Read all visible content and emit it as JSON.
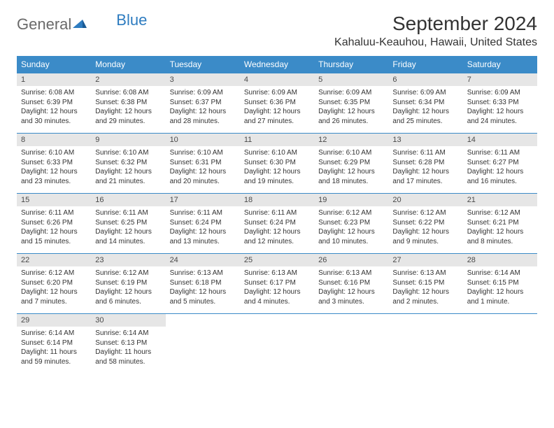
{
  "brand": {
    "part1": "General",
    "part2": "Blue"
  },
  "title": {
    "month": "September 2024",
    "location": "Kahaluu-Keauhou, Hawaii, United States"
  },
  "dayNames": [
    "Sunday",
    "Monday",
    "Tuesday",
    "Wednesday",
    "Thursday",
    "Friday",
    "Saturday"
  ],
  "colors": {
    "headerBg": "#3b8bc8",
    "dayNumBg": "#e6e6e6",
    "border": "#3b8bc8"
  },
  "weeks": [
    [
      {
        "n": "1",
        "sr": "Sunrise: 6:08 AM",
        "ss": "Sunset: 6:39 PM",
        "d1": "Daylight: 12 hours",
        "d2": "and 30 minutes."
      },
      {
        "n": "2",
        "sr": "Sunrise: 6:08 AM",
        "ss": "Sunset: 6:38 PM",
        "d1": "Daylight: 12 hours",
        "d2": "and 29 minutes."
      },
      {
        "n": "3",
        "sr": "Sunrise: 6:09 AM",
        "ss": "Sunset: 6:37 PM",
        "d1": "Daylight: 12 hours",
        "d2": "and 28 minutes."
      },
      {
        "n": "4",
        "sr": "Sunrise: 6:09 AM",
        "ss": "Sunset: 6:36 PM",
        "d1": "Daylight: 12 hours",
        "d2": "and 27 minutes."
      },
      {
        "n": "5",
        "sr": "Sunrise: 6:09 AM",
        "ss": "Sunset: 6:35 PM",
        "d1": "Daylight: 12 hours",
        "d2": "and 26 minutes."
      },
      {
        "n": "6",
        "sr": "Sunrise: 6:09 AM",
        "ss": "Sunset: 6:34 PM",
        "d1": "Daylight: 12 hours",
        "d2": "and 25 minutes."
      },
      {
        "n": "7",
        "sr": "Sunrise: 6:09 AM",
        "ss": "Sunset: 6:33 PM",
        "d1": "Daylight: 12 hours",
        "d2": "and 24 minutes."
      }
    ],
    [
      {
        "n": "8",
        "sr": "Sunrise: 6:10 AM",
        "ss": "Sunset: 6:33 PM",
        "d1": "Daylight: 12 hours",
        "d2": "and 23 minutes."
      },
      {
        "n": "9",
        "sr": "Sunrise: 6:10 AM",
        "ss": "Sunset: 6:32 PM",
        "d1": "Daylight: 12 hours",
        "d2": "and 21 minutes."
      },
      {
        "n": "10",
        "sr": "Sunrise: 6:10 AM",
        "ss": "Sunset: 6:31 PM",
        "d1": "Daylight: 12 hours",
        "d2": "and 20 minutes."
      },
      {
        "n": "11",
        "sr": "Sunrise: 6:10 AM",
        "ss": "Sunset: 6:30 PM",
        "d1": "Daylight: 12 hours",
        "d2": "and 19 minutes."
      },
      {
        "n": "12",
        "sr": "Sunrise: 6:10 AM",
        "ss": "Sunset: 6:29 PM",
        "d1": "Daylight: 12 hours",
        "d2": "and 18 minutes."
      },
      {
        "n": "13",
        "sr": "Sunrise: 6:11 AM",
        "ss": "Sunset: 6:28 PM",
        "d1": "Daylight: 12 hours",
        "d2": "and 17 minutes."
      },
      {
        "n": "14",
        "sr": "Sunrise: 6:11 AM",
        "ss": "Sunset: 6:27 PM",
        "d1": "Daylight: 12 hours",
        "d2": "and 16 minutes."
      }
    ],
    [
      {
        "n": "15",
        "sr": "Sunrise: 6:11 AM",
        "ss": "Sunset: 6:26 PM",
        "d1": "Daylight: 12 hours",
        "d2": "and 15 minutes."
      },
      {
        "n": "16",
        "sr": "Sunrise: 6:11 AM",
        "ss": "Sunset: 6:25 PM",
        "d1": "Daylight: 12 hours",
        "d2": "and 14 minutes."
      },
      {
        "n": "17",
        "sr": "Sunrise: 6:11 AM",
        "ss": "Sunset: 6:24 PM",
        "d1": "Daylight: 12 hours",
        "d2": "and 13 minutes."
      },
      {
        "n": "18",
        "sr": "Sunrise: 6:11 AM",
        "ss": "Sunset: 6:24 PM",
        "d1": "Daylight: 12 hours",
        "d2": "and 12 minutes."
      },
      {
        "n": "19",
        "sr": "Sunrise: 6:12 AM",
        "ss": "Sunset: 6:23 PM",
        "d1": "Daylight: 12 hours",
        "d2": "and 10 minutes."
      },
      {
        "n": "20",
        "sr": "Sunrise: 6:12 AM",
        "ss": "Sunset: 6:22 PM",
        "d1": "Daylight: 12 hours",
        "d2": "and 9 minutes."
      },
      {
        "n": "21",
        "sr": "Sunrise: 6:12 AM",
        "ss": "Sunset: 6:21 PM",
        "d1": "Daylight: 12 hours",
        "d2": "and 8 minutes."
      }
    ],
    [
      {
        "n": "22",
        "sr": "Sunrise: 6:12 AM",
        "ss": "Sunset: 6:20 PM",
        "d1": "Daylight: 12 hours",
        "d2": "and 7 minutes."
      },
      {
        "n": "23",
        "sr": "Sunrise: 6:12 AM",
        "ss": "Sunset: 6:19 PM",
        "d1": "Daylight: 12 hours",
        "d2": "and 6 minutes."
      },
      {
        "n": "24",
        "sr": "Sunrise: 6:13 AM",
        "ss": "Sunset: 6:18 PM",
        "d1": "Daylight: 12 hours",
        "d2": "and 5 minutes."
      },
      {
        "n": "25",
        "sr": "Sunrise: 6:13 AM",
        "ss": "Sunset: 6:17 PM",
        "d1": "Daylight: 12 hours",
        "d2": "and 4 minutes."
      },
      {
        "n": "26",
        "sr": "Sunrise: 6:13 AM",
        "ss": "Sunset: 6:16 PM",
        "d1": "Daylight: 12 hours",
        "d2": "and 3 minutes."
      },
      {
        "n": "27",
        "sr": "Sunrise: 6:13 AM",
        "ss": "Sunset: 6:15 PM",
        "d1": "Daylight: 12 hours",
        "d2": "and 2 minutes."
      },
      {
        "n": "28",
        "sr": "Sunrise: 6:14 AM",
        "ss": "Sunset: 6:15 PM",
        "d1": "Daylight: 12 hours",
        "d2": "and 1 minute."
      }
    ],
    [
      {
        "n": "29",
        "sr": "Sunrise: 6:14 AM",
        "ss": "Sunset: 6:14 PM",
        "d1": "Daylight: 11 hours",
        "d2": "and 59 minutes."
      },
      {
        "n": "30",
        "sr": "Sunrise: 6:14 AM",
        "ss": "Sunset: 6:13 PM",
        "d1": "Daylight: 11 hours",
        "d2": "and 58 minutes."
      },
      null,
      null,
      null,
      null,
      null
    ]
  ]
}
